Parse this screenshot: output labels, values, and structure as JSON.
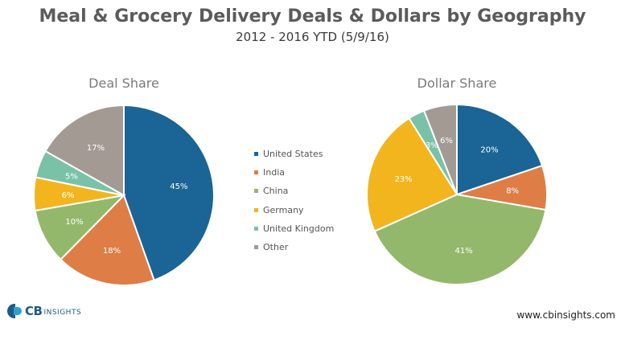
{
  "title": "Meal & Grocery Delivery Deals & Dollars by Geography",
  "subtitle": "2012 - 2016 YTD (5/9/16)",
  "colors": {
    "United States": "#1a6496",
    "India": "#de7d46",
    "China": "#94b86b",
    "Germany": "#f3b51e",
    "United Kingdom": "#79c2a8",
    "Other": "#a49a94"
  },
  "chart_data": [
    {
      "type": "pie",
      "title": "Deal Share",
      "labels": [
        "United States",
        "India",
        "China",
        "Germany",
        "United Kingdom",
        "Other"
      ],
      "values": [
        45,
        18,
        10,
        6,
        5,
        17
      ],
      "value_labels": [
        "45%",
        "18%",
        "10%",
        "6%",
        "5%",
        "17%"
      ]
    },
    {
      "type": "pie",
      "title": "Dollar Share",
      "labels": [
        "United States",
        "India",
        "China",
        "Germany",
        "United Kingdom",
        "Other"
      ],
      "values": [
        20,
        8,
        41,
        23,
        3,
        6
      ],
      "value_labels": [
        "20%",
        "8%",
        "41%",
        "23%",
        "3%",
        "6%"
      ]
    }
  ],
  "legend": [
    "United States",
    "India",
    "China",
    "Germany",
    "United Kingdom",
    "Other"
  ],
  "footer": {
    "logo_cb": "CB",
    "logo_insights": "INSIGHTS",
    "url": "www.cbinsights.com"
  }
}
